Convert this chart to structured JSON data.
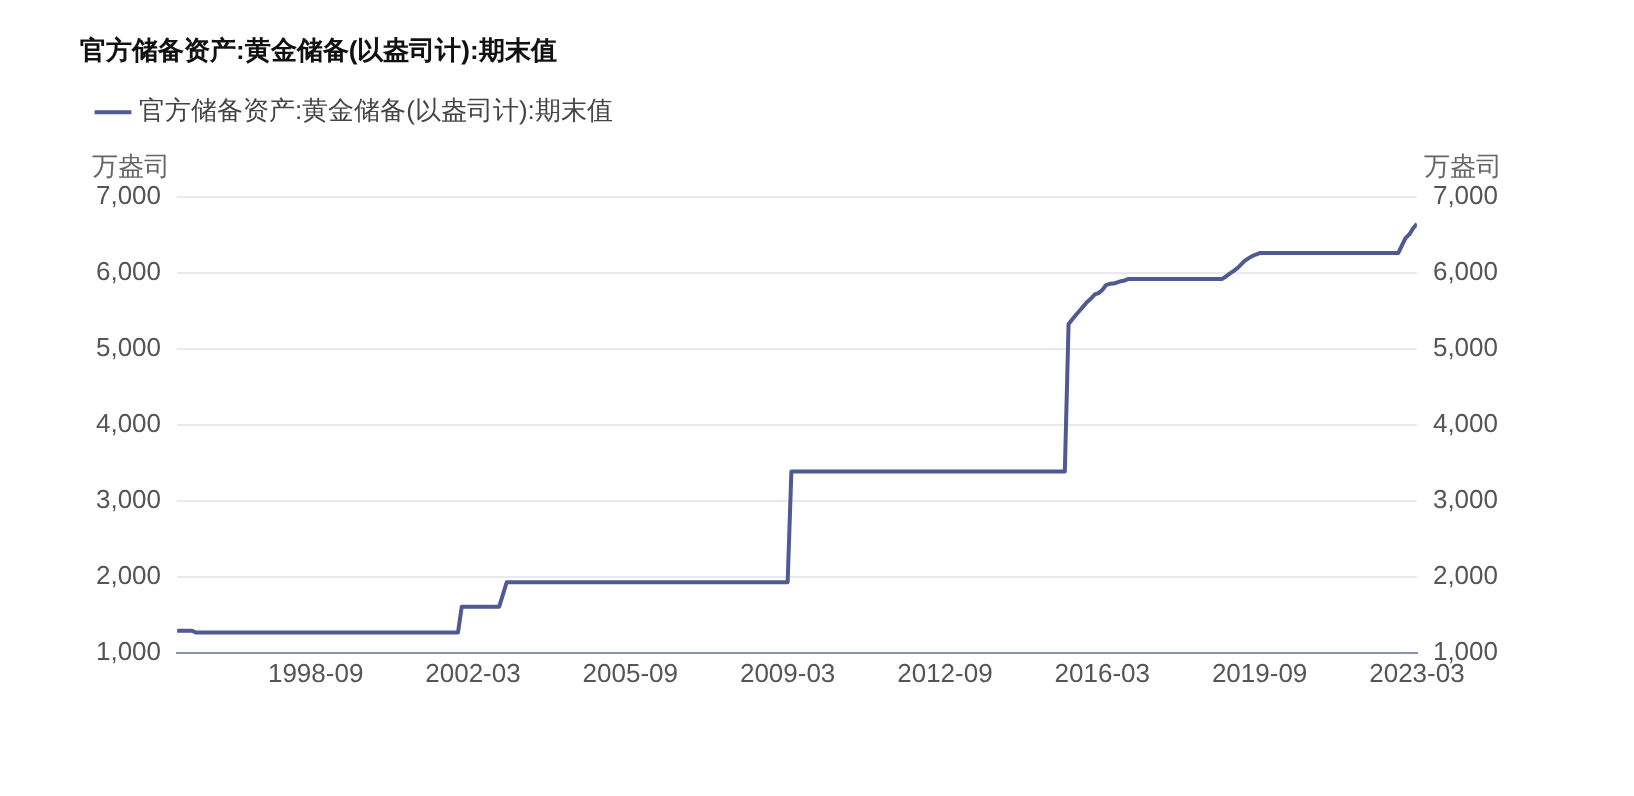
{
  "chart_data": {
    "type": "line",
    "title": "官方储备资产:黄金储备(以盎司计):期末值",
    "ylabel": "万盎司",
    "y2label": "万盎司",
    "x": [
      "1995-08",
      "1995-12",
      "1996-01",
      "2001-11",
      "2001-12",
      "2002-10",
      "2002-12",
      "2009-03",
      "2009-04",
      "2015-05",
      "2015-06",
      "2015-07",
      "2015-08",
      "2015-09",
      "2015-10",
      "2015-11",
      "2015-12",
      "2016-01",
      "2016-02",
      "2016-03",
      "2016-04",
      "2016-05",
      "2016-06",
      "2016-07",
      "2016-08",
      "2016-09",
      "2016-10",
      "2018-11",
      "2018-12",
      "2019-01",
      "2019-02",
      "2019-03",
      "2019-04",
      "2019-05",
      "2019-06",
      "2019-07",
      "2019-08",
      "2019-09",
      "2022-10",
      "2022-11",
      "2022-12",
      "2023-01",
      "2023-02",
      "2023-03"
    ],
    "series": [
      {
        "name": "官方储备资产:黄金储备(以盎司计):期末值",
        "color": "#4e5a91",
        "values": [
          1290,
          1290,
          1267,
          1267,
          1608,
          1608,
          1929,
          1929,
          3389,
          3389,
          5331,
          5393,
          5452,
          5508,
          5566,
          5624,
          5666,
          5719,
          5737,
          5779,
          5843,
          5859,
          5862,
          5879,
          5894,
          5904,
          5924,
          5924,
          5956,
          5994,
          6026,
          6062,
          6111,
          6161,
          6194,
          6224,
          6245,
          6264,
          6264,
          6367,
          6464,
          6512,
          6592,
          6650
        ]
      }
    ],
    "xlim": [
      "1995-08",
      "2023-03"
    ],
    "xticks": [
      "1998-09",
      "2002-03",
      "2005-09",
      "2009-03",
      "2012-09",
      "2016-03",
      "2019-09",
      "2023-03"
    ],
    "ylim": [
      1000,
      7000
    ],
    "yticks": [
      {
        "value": 1000,
        "label": "1,000"
      },
      {
        "value": 2000,
        "label": "2,000"
      },
      {
        "value": 3000,
        "label": "3,000"
      },
      {
        "value": 4000,
        "label": "4,000"
      },
      {
        "value": 5000,
        "label": "5,000"
      },
      {
        "value": 6000,
        "label": "6,000"
      },
      {
        "value": 7000,
        "label": "7,000"
      }
    ],
    "y2lim": [
      1000,
      7000
    ],
    "y2ticks": [
      {
        "value": 1000,
        "label": "1,000"
      },
      {
        "value": 2000,
        "label": "2,000"
      },
      {
        "value": 3000,
        "label": "3,000"
      },
      {
        "value": 4000,
        "label": "4,000"
      },
      {
        "value": 5000,
        "label": "5,000"
      },
      {
        "value": 6000,
        "label": "6,000"
      },
      {
        "value": 7000,
        "label": "7,000"
      }
    ],
    "grid": "y",
    "legend": "top left",
    "marker": "none",
    "line_style": "solid"
  }
}
